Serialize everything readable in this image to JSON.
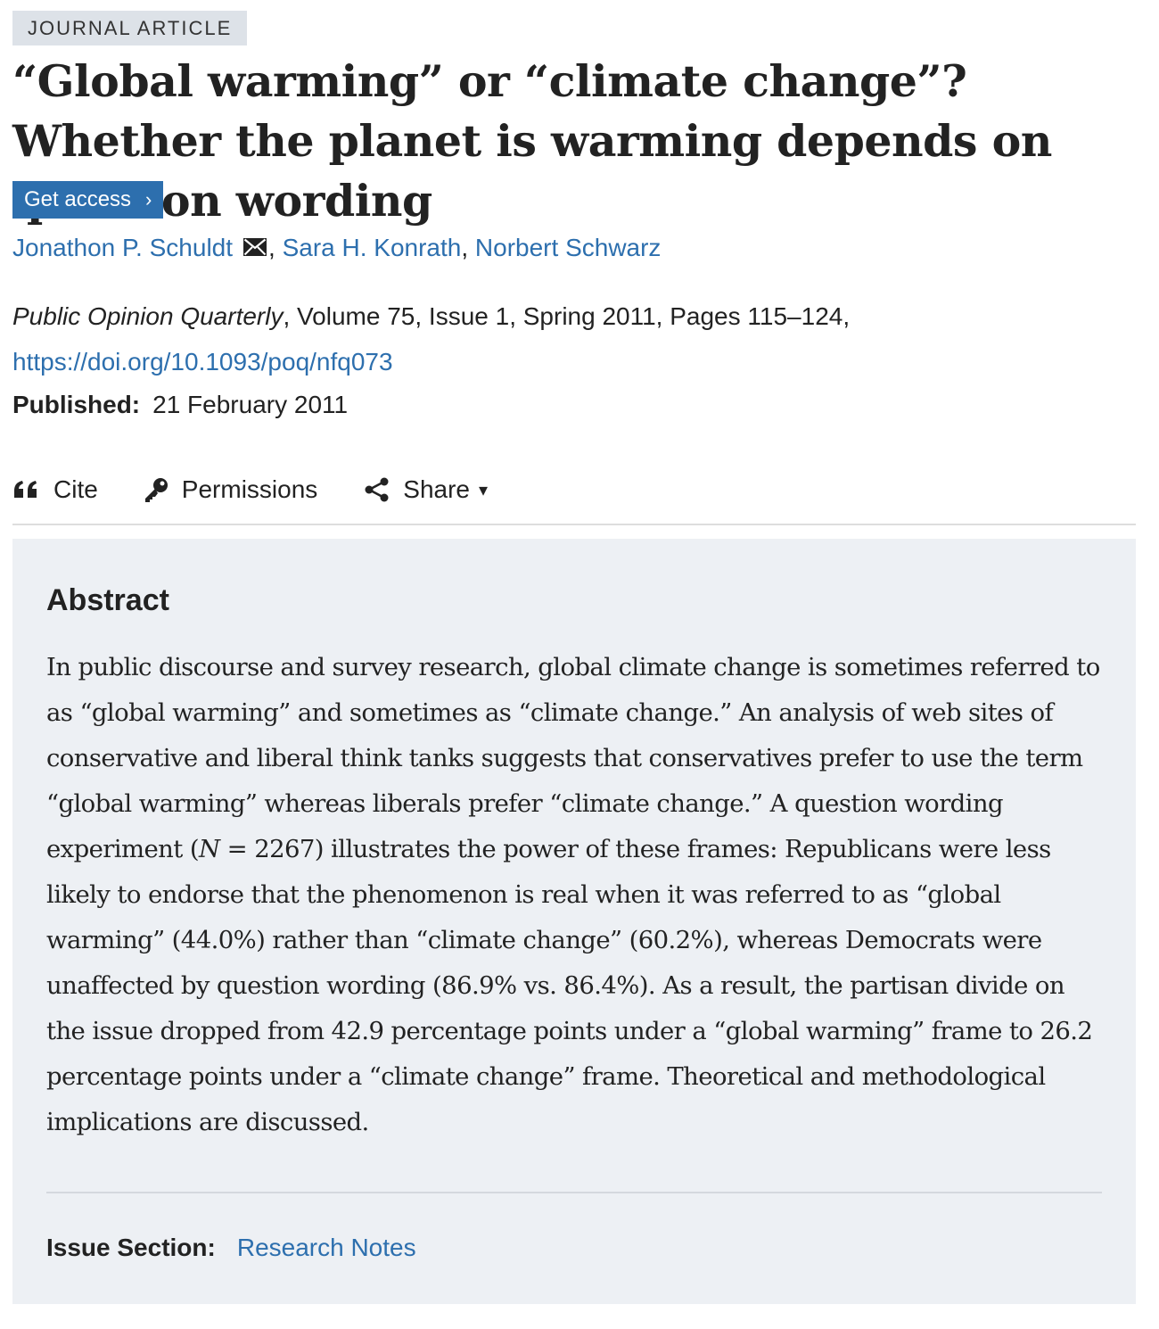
{
  "article_type": "JOURNAL ARTICLE",
  "title": "“Global warming” or “climate change”? Whether the planet is warming depends on question wording",
  "access": {
    "button_label": "Get access",
    "chevron": "›"
  },
  "authors": {
    "items": [
      {
        "name": "Jonathon P. Schuldt",
        "has_email": true
      },
      {
        "name": "Sara H. Konrath"
      },
      {
        "name": "Norbert Schwarz"
      }
    ],
    "separator": ", "
  },
  "citation": {
    "journal": "Public Opinion Quarterly",
    "details": ", Volume 75, Issue 1, Spring 2011, Pages 115–124, ",
    "doi_url": "https://doi.org/10.1093/poq/nfq073"
  },
  "published": {
    "label": "Published:",
    "date": "21 February 2011"
  },
  "toolbar": {
    "cite_label": "Cite",
    "permissions_label": "Permissions",
    "share_label": "Share",
    "share_caret": "▾"
  },
  "abstract": {
    "heading": "Abstract",
    "text_part1": "In public discourse and survey research, global climate change is sometimes referred to as “global warming” and sometimes as “climate change.” An analysis of web sites of conservative and liberal think tanks suggests that conservatives prefer to use the term “global warming” whereas liberals prefer “climate change.” A question wording experiment (",
    "text_italic": "N",
    "text_part2": " = 2267) illustrates the power of these frames: Republicans were less likely to endorse that the phenomenon is real when it was referred to as “global warming” (44.0%) rather than “climate change” (60.2%), whereas Democrats were unaffected by question wording (86.9% vs. 86.4%). As a result, the partisan divide on the issue dropped from 42.9 percentage points under a “global warming” frame to 26.2 percentage points under a “climate change” frame. Theoretical and methodological implications are discussed."
  },
  "issue_section": {
    "label": "Issue Section:",
    "value": "Research Notes"
  },
  "colors": {
    "link": "#2d6fae",
    "button_bg": "#2d6fae",
    "badge_bg": "#dde2e8",
    "abstract_bg": "#edf0f4"
  },
  "icons": {
    "email": "envelope-icon",
    "cite": "quote-icon",
    "permissions": "key-icon",
    "share": "share-icon"
  }
}
